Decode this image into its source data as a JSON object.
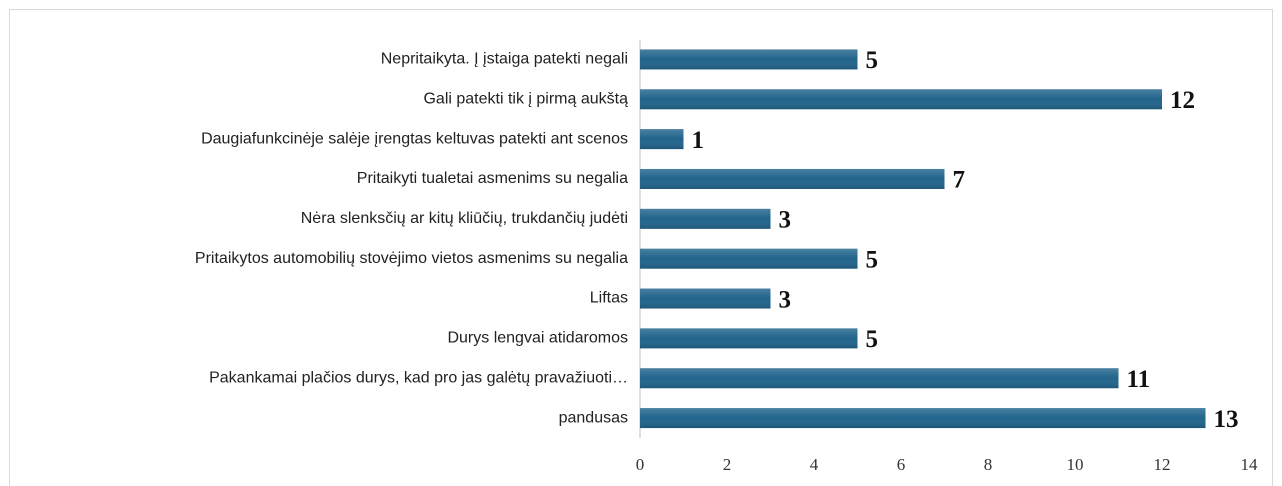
{
  "chart_data": {
    "type": "barh",
    "categories": [
      "Nepritaikyta. Į įstaiga patekti negali",
      "Gali patekti tik į pirmą aukštą",
      "Daugiafunkcinėje salėje įrengtas keltuvas patekti ant scenos",
      "Pritaikyti tualetai asmenims su negalia",
      "Nėra slenksčių ar kitų kliūčių, trukdančių judėti",
      "Pritaikytos automobilių stovėjimo vietos asmenims su negalia",
      "Liftas",
      "Durys lengvai atidaromos",
      "Pakankamai plačios durys, kad pro jas galėtų pravažiuoti…",
      "pandusas"
    ],
    "values": [
      5,
      12,
      1,
      7,
      3,
      5,
      3,
      5,
      11,
      13
    ],
    "color": "#21648c",
    "xlim": [
      0,
      14
    ],
    "xticks": [
      0,
      2,
      4,
      6,
      8,
      10,
      12,
      14
    ],
    "grid": false
  }
}
